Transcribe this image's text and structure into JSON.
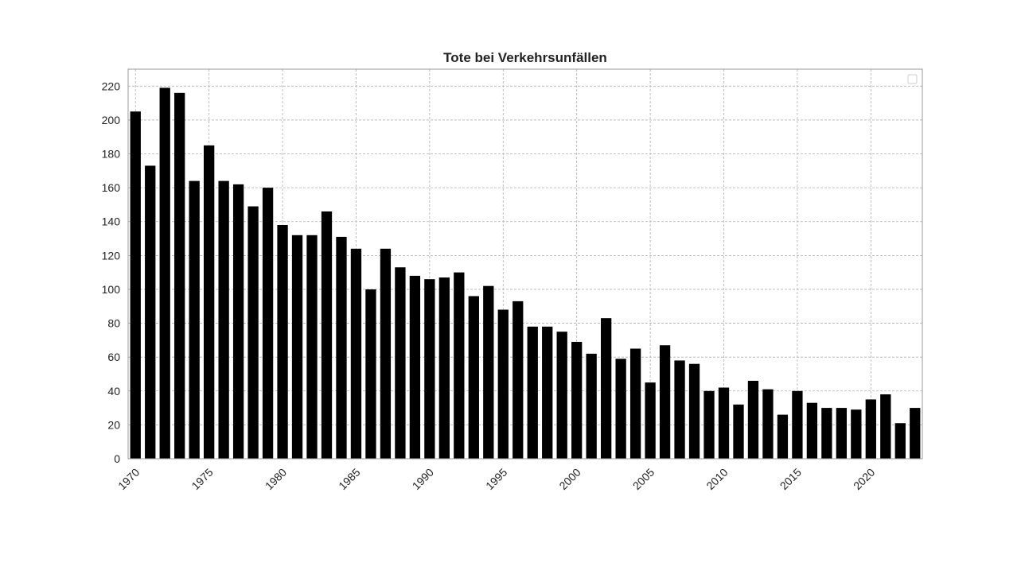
{
  "chart_data": {
    "type": "bar",
    "title": "Tote bei Verkehrsunfällen",
    "x": [
      1970,
      1971,
      1972,
      1973,
      1974,
      1975,
      1976,
      1977,
      1978,
      1979,
      1980,
      1981,
      1982,
      1983,
      1984,
      1985,
      1986,
      1987,
      1988,
      1989,
      1990,
      1991,
      1992,
      1993,
      1994,
      1995,
      1996,
      1997,
      1998,
      1999,
      2000,
      2001,
      2002,
      2003,
      2004,
      2005,
      2006,
      2007,
      2008,
      2009,
      2010,
      2011,
      2012,
      2013,
      2014,
      2015,
      2016,
      2017,
      2018,
      2019,
      2020,
      2021,
      2022,
      2023
    ],
    "values": [
      205,
      173,
      219,
      216,
      164,
      185,
      164,
      162,
      149,
      160,
      138,
      132,
      132,
      146,
      131,
      124,
      100,
      124,
      113,
      108,
      106,
      107,
      110,
      96,
      102,
      88,
      93,
      78,
      78,
      75,
      69,
      62,
      83,
      59,
      65,
      45,
      67,
      58,
      56,
      40,
      42,
      32,
      46,
      41,
      26,
      40,
      33,
      30,
      30,
      29,
      35,
      38,
      21,
      30
    ],
    "color": "#000000",
    "xlim": [
      1969.5,
      2023.5
    ],
    "xticks": [
      1970,
      1975,
      1980,
      1985,
      1990,
      1995,
      2000,
      2005,
      2010,
      2015,
      2020
    ],
    "ylim": [
      0,
      230
    ],
    "yticks": [
      0,
      20,
      40,
      60,
      80,
      100,
      120,
      140,
      160,
      180,
      200,
      220
    ],
    "grid": true
  }
}
